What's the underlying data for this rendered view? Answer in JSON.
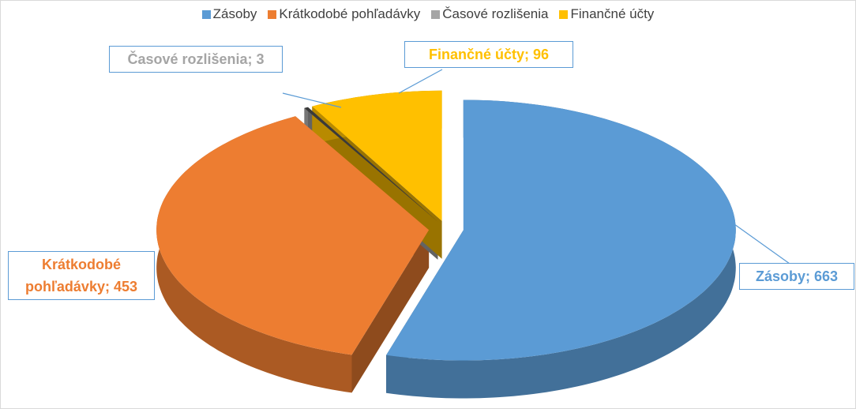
{
  "chart_data": {
    "type": "pie3d",
    "categories": [
      "Zásoby",
      "Krátkodobé pohľadávky",
      "Časové rozlišenia",
      "Finančné účty"
    ],
    "values": [
      663,
      453,
      3,
      96
    ],
    "value_labels": [
      "Zásoby; 663",
      "Krátkodobé pohľadávky; 453",
      "Časové rozlišenia; 3",
      "Finančné účty; 96"
    ],
    "colors": [
      "#5b9bd5",
      "#ed7d31",
      "#a5a5a5",
      "#ffc000"
    ],
    "legend": "top"
  }
}
